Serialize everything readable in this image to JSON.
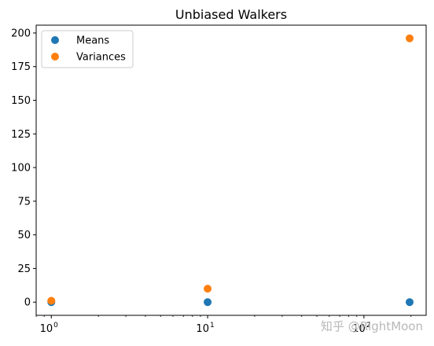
{
  "chart_data": {
    "type": "scatter",
    "title": "Unbiased Walkers",
    "xlabel": "",
    "ylabel": "",
    "xscale": "log",
    "xlim": [
      0.8,
      250
    ],
    "ylim": [
      -9.8,
      205.8
    ],
    "grid": false,
    "legend_position": "top-left",
    "x_ticks": [
      1,
      10,
      100
    ],
    "x_tick_labels": [
      {
        "base": "10",
        "exp": "0"
      },
      {
        "base": "10",
        "exp": "1"
      },
      {
        "base": "10",
        "exp": "2"
      }
    ],
    "y_ticks": [
      0,
      25,
      50,
      75,
      100,
      125,
      150,
      175,
      200
    ],
    "y_tick_labels": [
      "0",
      "25",
      "50",
      "75",
      "100",
      "125",
      "150",
      "175",
      "200"
    ],
    "series": [
      {
        "name": "Means",
        "color": "#1f77b4",
        "x": [
          1,
          10,
          196
        ],
        "y": [
          0,
          0,
          0
        ]
      },
      {
        "name": "Variances",
        "color": "#ff7f0e",
        "x": [
          1,
          10,
          196
        ],
        "y": [
          1,
          10,
          196
        ]
      }
    ]
  },
  "watermark": "知乎 @RightMoon"
}
